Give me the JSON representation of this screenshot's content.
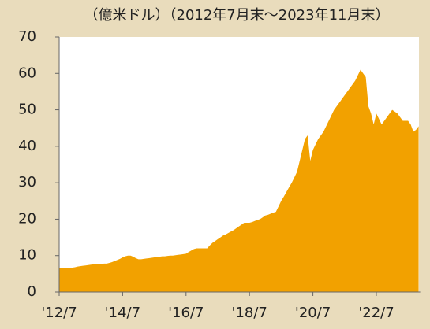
{
  "chart_data": {
    "type": "area",
    "title": "（億米ドル）（2012年7月末～2023年11月末）",
    "color": "#f2a100",
    "categories": [
      "'12/7",
      null,
      null,
      null,
      null,
      null,
      null,
      null,
      null,
      null,
      null,
      null,
      null,
      null,
      null,
      null,
      null,
      null,
      null,
      null,
      null,
      null,
      null,
      null,
      "'14/7",
      null,
      null,
      null,
      null,
      null,
      null,
      null,
      null,
      null,
      null,
      null,
      null,
      null,
      null,
      null,
      null,
      null,
      null,
      null,
      null,
      null,
      null,
      null,
      "'16/7",
      null,
      null,
      null,
      null,
      null,
      null,
      null,
      null,
      null,
      null,
      null,
      null,
      null,
      null,
      null,
      null,
      null,
      null,
      null,
      null,
      null,
      null,
      null,
      "'18/7",
      null,
      null,
      null,
      null,
      null,
      null,
      null,
      null,
      null,
      null,
      null,
      null,
      null,
      null,
      null,
      null,
      null,
      null,
      null,
      null,
      null,
      null,
      null,
      "'20/7",
      null,
      null,
      null,
      null,
      null,
      null,
      null,
      null,
      null,
      null,
      null,
      null,
      null,
      null,
      null,
      null,
      null,
      null,
      null,
      null,
      null,
      null,
      null,
      "'22/7",
      null,
      null,
      null,
      null,
      null,
      null,
      null,
      null,
      null,
      null,
      null,
      null,
      null,
      null,
      null,
      null
    ],
    "values": [
      6.5,
      6.5,
      6.6,
      6.6,
      6.7,
      6.7,
      6.8,
      7.0,
      7.1,
      7.2,
      7.3,
      7.4,
      7.5,
      7.6,
      7.6,
      7.7,
      7.7,
      7.8,
      7.8,
      8.0,
      8.2,
      8.5,
      8.8,
      9.1,
      9.5,
      9.8,
      10,
      10,
      9.7,
      9.3,
      9.0,
      9.0,
      9.1,
      9.2,
      9.3,
      9.4,
      9.5,
      9.6,
      9.7,
      9.8,
      9.8,
      9.9,
      10,
      10,
      10.1,
      10.2,
      10.3,
      10.4,
      10.5,
      11,
      11.4,
      11.8,
      12,
      12,
      12,
      12,
      12,
      12.8,
      13.5,
      14,
      14.5,
      15,
      15.5,
      15.8,
      16.2,
      16.6,
      17,
      17.5,
      18,
      18.5,
      19,
      19,
      19,
      19.2,
      19.5,
      19.8,
      20,
      20.5,
      21,
      21.2,
      21.5,
      21.8,
      22,
      23.5,
      25,
      26.2,
      27.5,
      28.8,
      30,
      31.5,
      33,
      36,
      39,
      42,
      43,
      36,
      39,
      40.5,
      42,
      43,
      44,
      45.5,
      47,
      48.5,
      50,
      51,
      52,
      53,
      54,
      55,
      56,
      57,
      58,
      59.5,
      61,
      60,
      59,
      51,
      49,
      46,
      49,
      47.5,
      46,
      47,
      48,
      49,
      50,
      49.5,
      49,
      48,
      47,
      47,
      47,
      46,
      44,
      44.5,
      45.5
    ],
    "ylim": [
      0,
      70
    ],
    "yticks": [
      0,
      10,
      20,
      30,
      40,
      50,
      60,
      70
    ]
  }
}
